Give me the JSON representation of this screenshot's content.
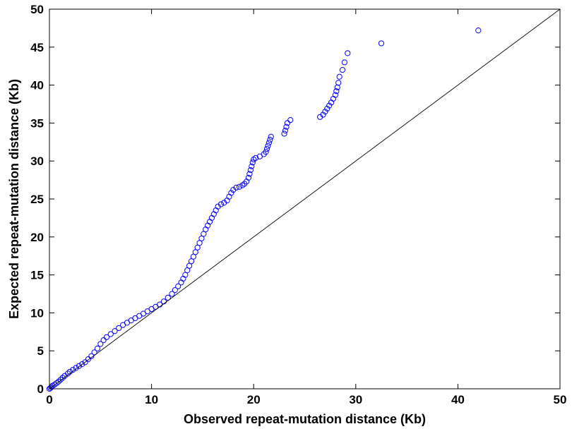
{
  "chart_data": {
    "type": "scatter",
    "title": "",
    "xlabel": "Observed repeat-mutation distance (Kb)",
    "ylabel": "Expected repeat-mutation distance (Kb)",
    "xlim": [
      0,
      50
    ],
    "ylim": [
      0,
      50
    ],
    "xticks": [
      "0",
      "10",
      "20",
      "30",
      "40",
      "50"
    ],
    "yticks": [
      "0",
      "5",
      "10",
      "15",
      "20",
      "25",
      "30",
      "35",
      "40",
      "45",
      "50"
    ],
    "grid": false,
    "legend": "none",
    "reference_line": {
      "from": [
        0,
        0
      ],
      "to": [
        50,
        50
      ],
      "color": "#000000"
    },
    "marker": {
      "shape": "open-circle",
      "color": "#0000ff"
    },
    "points": [
      [
        0.0,
        0.0
      ],
      [
        0.1,
        0.1
      ],
      [
        0.2,
        0.25
      ],
      [
        0.3,
        0.4
      ],
      [
        0.5,
        0.55
      ],
      [
        0.7,
        0.75
      ],
      [
        0.9,
        0.95
      ],
      [
        1.1,
        1.2
      ],
      [
        1.3,
        1.45
      ],
      [
        1.5,
        1.7
      ],
      [
        1.8,
        2.0
      ],
      [
        2.0,
        2.25
      ],
      [
        2.3,
        2.5
      ],
      [
        2.6,
        2.75
      ],
      [
        2.9,
        3.0
      ],
      [
        3.2,
        3.25
      ],
      [
        3.5,
        3.5
      ],
      [
        3.8,
        3.9
      ],
      [
        4.1,
        4.3
      ],
      [
        4.4,
        4.8
      ],
      [
        4.7,
        5.3
      ],
      [
        5.0,
        5.9
      ],
      [
        5.3,
        6.4
      ],
      [
        5.6,
        6.8
      ],
      [
        6.0,
        7.2
      ],
      [
        6.4,
        7.6
      ],
      [
        6.8,
        8.0
      ],
      [
        7.2,
        8.4
      ],
      [
        7.6,
        8.7
      ],
      [
        8.0,
        9.0
      ],
      [
        8.4,
        9.3
      ],
      [
        8.8,
        9.6
      ],
      [
        9.2,
        9.9
      ],
      [
        9.6,
        10.2
      ],
      [
        10.0,
        10.5
      ],
      [
        10.4,
        10.8
      ],
      [
        10.8,
        11.1
      ],
      [
        11.2,
        11.5
      ],
      [
        11.6,
        12.0
      ],
      [
        12.0,
        12.5
      ],
      [
        12.3,
        13.0
      ],
      [
        12.6,
        13.5
      ],
      [
        12.9,
        14.0
      ],
      [
        13.1,
        14.5
      ],
      [
        13.3,
        15.0
      ],
      [
        13.5,
        15.6
      ],
      [
        13.7,
        16.2
      ],
      [
        13.9,
        16.8
      ],
      [
        14.1,
        17.4
      ],
      [
        14.3,
        18.0
      ],
      [
        14.5,
        18.6
      ],
      [
        14.7,
        19.2
      ],
      [
        14.9,
        19.8
      ],
      [
        15.1,
        20.4
      ],
      [
        15.3,
        21.0
      ],
      [
        15.5,
        21.5
      ],
      [
        15.7,
        22.0
      ],
      [
        15.9,
        22.5
      ],
      [
        16.1,
        23.0
      ],
      [
        16.3,
        23.5
      ],
      [
        16.5,
        24.0
      ],
      [
        16.8,
        24.3
      ],
      [
        17.1,
        24.5
      ],
      [
        17.4,
        24.8
      ],
      [
        17.6,
        25.3
      ],
      [
        17.8,
        25.8
      ],
      [
        18.0,
        26.2
      ],
      [
        18.3,
        26.5
      ],
      [
        18.6,
        26.6
      ],
      [
        18.9,
        26.8
      ],
      [
        19.1,
        27.0
      ],
      [
        19.3,
        27.3
      ],
      [
        19.5,
        27.8
      ],
      [
        19.6,
        28.3
      ],
      [
        19.7,
        28.8
      ],
      [
        19.8,
        29.3
      ],
      [
        19.9,
        29.8
      ],
      [
        20.0,
        30.2
      ],
      [
        20.2,
        30.4
      ],
      [
        20.6,
        30.6
      ],
      [
        21.0,
        30.9
      ],
      [
        21.2,
        31.2
      ],
      [
        21.3,
        31.6
      ],
      [
        21.4,
        32.0
      ],
      [
        21.5,
        32.4
      ],
      [
        21.6,
        32.8
      ],
      [
        21.7,
        33.2
      ],
      [
        23.0,
        33.6
      ],
      [
        23.1,
        34.0
      ],
      [
        23.2,
        34.5
      ],
      [
        23.3,
        35.0
      ],
      [
        23.6,
        35.4
      ],
      [
        26.5,
        35.8
      ],
      [
        26.8,
        36.1
      ],
      [
        27.0,
        36.5
      ],
      [
        27.2,
        36.9
      ],
      [
        27.4,
        37.3
      ],
      [
        27.6,
        37.7
      ],
      [
        27.8,
        38.2
      ],
      [
        28.0,
        38.7
      ],
      [
        28.1,
        39.2
      ],
      [
        28.2,
        39.7
      ],
      [
        28.3,
        40.3
      ],
      [
        28.4,
        41.1
      ],
      [
        28.7,
        42.0
      ],
      [
        28.9,
        43.0
      ],
      [
        29.2,
        44.2
      ],
      [
        32.5,
        45.5
      ],
      [
        42.0,
        47.2
      ]
    ]
  }
}
